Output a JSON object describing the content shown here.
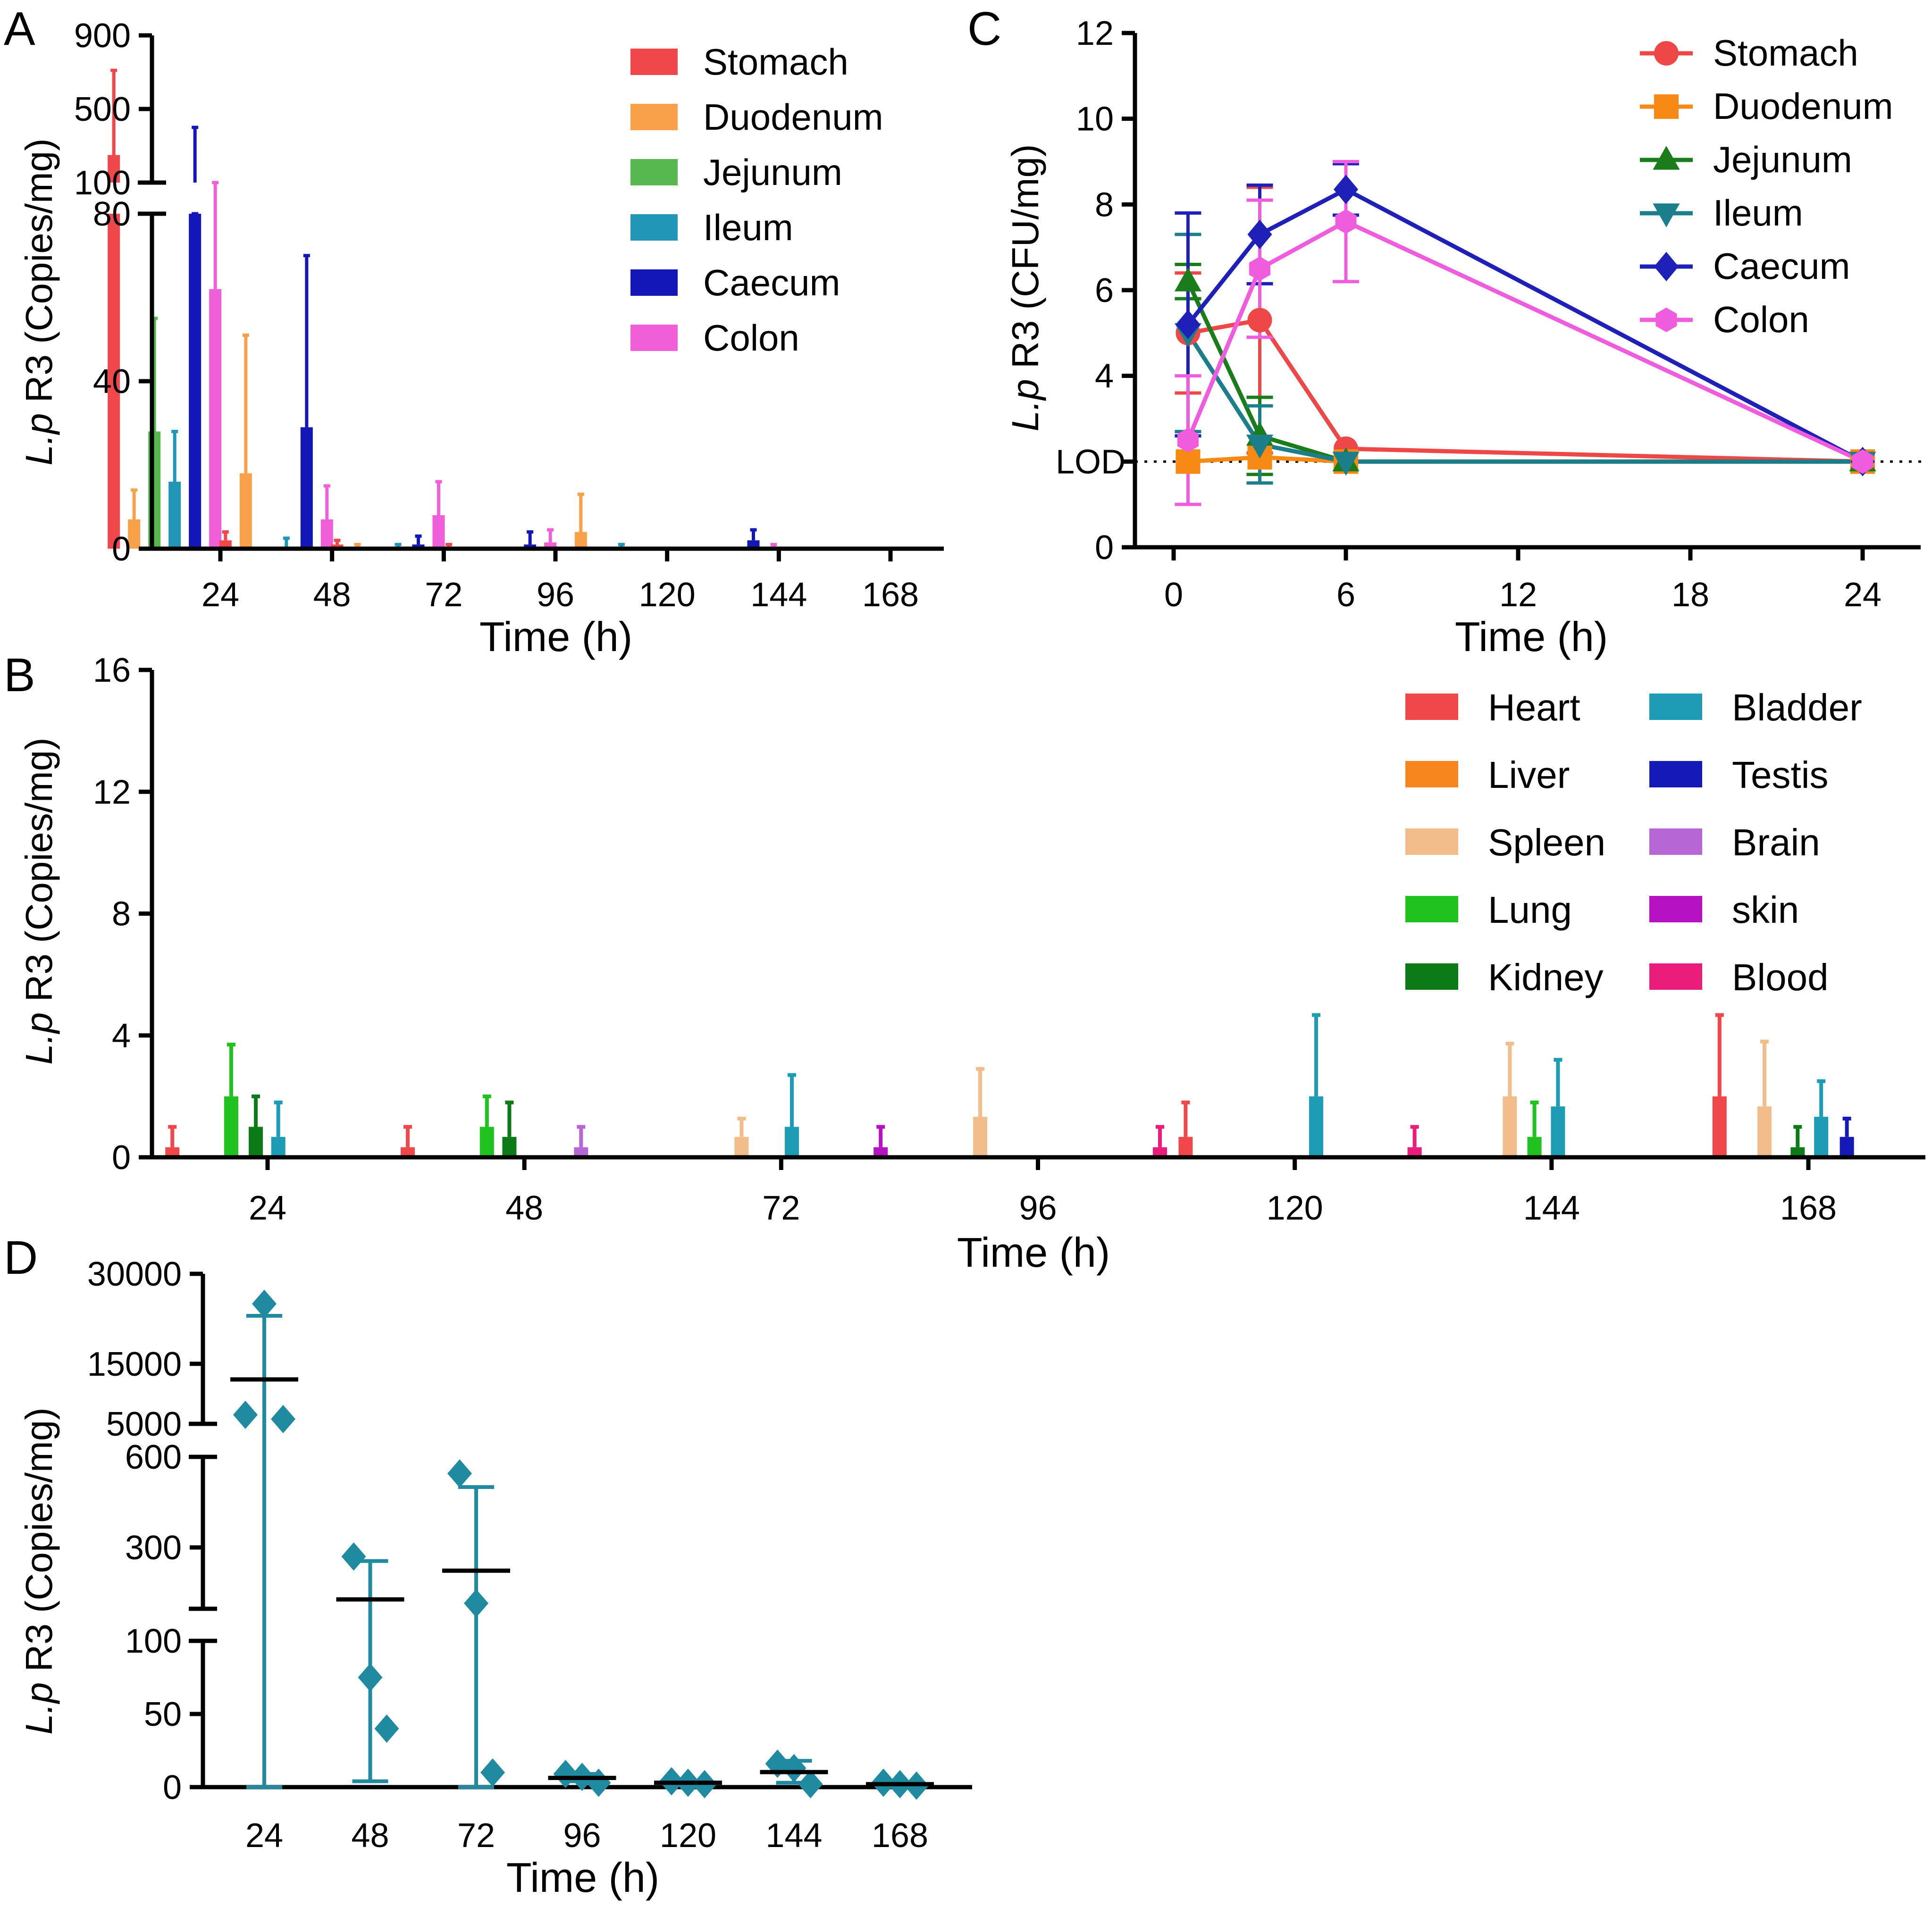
{
  "figure": {
    "colors": {
      "Stomach": "#f0484a",
      "Duodenum": "#f9a14a",
      "Jejunum": "#57b84f",
      "Ileum": "#2196b7",
      "Caecum": "#1317b8",
      "Colon": "#f05ed8",
      "Heart": "#f0484a",
      "Liver": "#f7861f",
      "Spleen": "#f2bd8a",
      "Lung": "#1fc21f",
      "Kidney": "#0c7a16",
      "Bladder": "#1e9cb5",
      "Testis": "#1419b7",
      "Brain": "#b767d5",
      "skin": "#b612c3",
      "Blood": "#ea1d7a",
      "cRed": "#ee4747",
      "cOrange": "#f78a14",
      "cGreen": "#1b7c1b",
      "cTeal": "#1d7e8b",
      "cBlue": "#1e20b8",
      "cPink": "#ef5cdd",
      "dMarker": "#1f8aa0"
    }
  },
  "chart_data": [
    {
      "panel": "A",
      "type": "bar",
      "ylabel_italic": "L.p",
      "ylabel_rest": " R3 (Copies/mg)",
      "xlabel": "Time (h)",
      "categories": [
        "24",
        "48",
        "72",
        "96",
        "120",
        "144",
        "168"
      ],
      "yticks_lower": [
        "0",
        "40",
        "80"
      ],
      "yticks_upper": [
        "100",
        "500",
        "900"
      ],
      "ylim_lower": [
        0,
        80
      ],
      "ylim_upper": [
        100,
        900
      ],
      "series": [
        {
          "name": "Stomach",
          "values": [
            250,
            2,
            1,
            0.5,
            0,
            0,
            0
          ],
          "errors": [
            460,
            2,
            1,
            0.5,
            0,
            0,
            0
          ]
        },
        {
          "name": "Duodenum",
          "values": [
            7,
            18,
            0.5,
            0,
            4,
            0,
            0
          ],
          "errors": [
            7,
            33,
            0.5,
            0,
            9,
            0,
            0
          ]
        },
        {
          "name": "Jejunum",
          "values": [
            28,
            0,
            0,
            0,
            0,
            0,
            0
          ],
          "errors": [
            27,
            0,
            0,
            0,
            0,
            0,
            0
          ]
        },
        {
          "name": "Ileum",
          "values": [
            16,
            0.5,
            0.5,
            0,
            0.5,
            0,
            0
          ],
          "errors": [
            12,
            2,
            0.5,
            0,
            0.5,
            0,
            0
          ]
        },
        {
          "name": "Caecum",
          "values": [
            80,
            29,
            1,
            1,
            0,
            2,
            0
          ],
          "errors": [
            320,
            41,
            2,
            3,
            0,
            2.5,
            0
          ]
        },
        {
          "name": "Colon",
          "values": [
            62,
            7,
            8,
            1.5,
            0,
            0.5,
            0
          ],
          "errors": [
            38,
            8,
            8,
            3,
            0,
            0.5,
            0
          ]
        }
      ],
      "legend": [
        "Stomach",
        "Duodenum",
        "Jejunum",
        "Ileum",
        "Caecum",
        "Colon"
      ]
    },
    {
      "panel": "B",
      "type": "bar",
      "ylabel_italic": "L.p",
      "ylabel_rest": " R3 (Copies/mg)",
      "xlabel": "Time (h)",
      "categories": [
        "24",
        "48",
        "72",
        "96",
        "120",
        "144",
        "168"
      ],
      "yticks": [
        "0",
        "4",
        "8",
        "12",
        "16"
      ],
      "ylim": [
        0,
        16
      ],
      "bars": [
        {
          "series": "Heart",
          "x": 15.1,
          "value": 0.33,
          "error": 0.67
        },
        {
          "series": "Lung",
          "x": 20.6,
          "value": 2.0,
          "error": 1.7
        },
        {
          "series": "Kidney",
          "x": 22.9,
          "value": 1.0,
          "error": 1.0
        },
        {
          "series": "Bladder",
          "x": 25.0,
          "value": 0.67,
          "error": 1.13
        },
        {
          "series": "Heart",
          "x": 37.1,
          "value": 0.33,
          "error": 0.67
        },
        {
          "series": "Lung",
          "x": 44.5,
          "value": 1.0,
          "error": 1.0
        },
        {
          "series": "Kidney",
          "x": 46.6,
          "value": 0.67,
          "error": 1.13
        },
        {
          "series": "Brain",
          "x": 53.3,
          "value": 0.33,
          "error": 0.67
        },
        {
          "series": "Spleen",
          "x": 68.3,
          "value": 0.67,
          "error": 0.6
        },
        {
          "series": "Bladder",
          "x": 73.0,
          "value": 1.0,
          "error": 1.7
        },
        {
          "series": "skin",
          "x": 81.3,
          "value": 0.33,
          "error": 0.67
        },
        {
          "series": "Spleen",
          "x": 90.6,
          "value": 1.33,
          "error": 1.57
        },
        {
          "series": "Blood",
          "x": 107.4,
          "value": 0.33,
          "error": 0.67
        },
        {
          "series": "Heart",
          "x": 109.8,
          "value": 0.67,
          "error": 1.13
        },
        {
          "series": "Bladder",
          "x": 122.0,
          "value": 2.0,
          "error": 2.67
        },
        {
          "series": "Blood",
          "x": 131.2,
          "value": 0.33,
          "error": 0.67
        },
        {
          "series": "Spleen",
          "x": 140.1,
          "value": 2.0,
          "error": 1.73
        },
        {
          "series": "Lung",
          "x": 142.4,
          "value": 0.67,
          "error": 1.13
        },
        {
          "series": "Bladder",
          "x": 144.6,
          "value": 1.67,
          "error": 1.53
        },
        {
          "series": "Heart",
          "x": 159.7,
          "value": 2.0,
          "error": 2.67
        },
        {
          "series": "Spleen",
          "x": 163.9,
          "value": 1.67,
          "error": 2.13
        },
        {
          "series": "Kidney",
          "x": 167.0,
          "value": 0.33,
          "error": 0.67
        },
        {
          "series": "Bladder",
          "x": 169.2,
          "value": 1.33,
          "error": 1.17
        },
        {
          "series": "Testis",
          "x": 171.6,
          "value": 0.67,
          "error": 0.6
        }
      ],
      "legend_col1": [
        "Heart",
        "Liver",
        "Spleen",
        "Lung",
        "Kidney"
      ],
      "legend_col2": [
        "Bladder",
        "Testis",
        "Brain",
        "skin",
        "Blood"
      ]
    },
    {
      "panel": "C",
      "type": "line",
      "ylabel_italic": "L.p",
      "ylabel_rest": " R3 (CFU/mg)",
      "xlabel": "Time (h)",
      "xticks": [
        "0",
        "6",
        "12",
        "18",
        "24"
      ],
      "ylim": [
        0,
        12
      ],
      "yticks": [
        "0",
        "2",
        "4",
        "6",
        "8",
        "10",
        "12"
      ],
      "lod_label": "LOD",
      "lod_value": 2,
      "series": [
        {
          "name": "Stomach",
          "marker": "circle",
          "x": [
            0.5,
            3,
            6,
            24
          ],
          "y": [
            5.0,
            5.3,
            2.3,
            2.0
          ],
          "err": [
            1.4,
            3.1,
            0,
            0
          ]
        },
        {
          "name": "Duodenum",
          "marker": "square",
          "x": [
            0.5,
            3,
            6,
            24
          ],
          "y": [
            2.0,
            2.1,
            2.0,
            2.0
          ],
          "err": [
            0,
            0,
            0,
            0
          ]
        },
        {
          "name": "Jejunum",
          "marker": "triangle-up",
          "x": [
            0.5,
            3,
            6,
            24
          ],
          "y": [
            6.2,
            2.6,
            2.0,
            2.0
          ],
          "err": [
            0.4,
            0.9,
            0,
            0
          ]
        },
        {
          "name": "Ileum",
          "marker": "triangle-down",
          "x": [
            0.5,
            3,
            6,
            24
          ],
          "y": [
            5.0,
            2.4,
            2.0,
            2.0
          ],
          "err": [
            2.3,
            0.9,
            0,
            0
          ]
        },
        {
          "name": "Caecum",
          "marker": "diamond",
          "x": [
            0.5,
            3,
            6,
            24
          ],
          "y": [
            5.2,
            7.3,
            8.35,
            2.0
          ],
          "err": [
            2.6,
            1.15,
            0.6,
            0
          ]
        },
        {
          "name": "Colon",
          "marker": "hexagon",
          "x": [
            0.5,
            3,
            6,
            24
          ],
          "y": [
            2.5,
            6.5,
            7.6,
            2.0
          ],
          "err": [
            1.5,
            1.6,
            1.4,
            0
          ]
        }
      ],
      "legend": [
        "Stomach",
        "Duodenum",
        "Jejunum",
        "Ileum",
        "Caecum",
        "Colon"
      ]
    },
    {
      "panel": "D",
      "type": "scatter",
      "ylabel_italic": "L.p",
      "ylabel_rest": " R3 (Copies/mg)",
      "xlabel": "Time (h)",
      "categories": [
        "24",
        "48",
        "72",
        "96",
        "120",
        "144",
        "168"
      ],
      "yticks_low": [
        "0",
        "50",
        "100"
      ],
      "yticks_mid": [
        "300",
        "600"
      ],
      "yticks_high": [
        "5000",
        "15000",
        "30000"
      ],
      "groups": [
        {
          "points": [
            25000,
            6500,
            5800
          ],
          "mean": 12400,
          "upper": 23000,
          "lower": 0
        },
        {
          "points": [
            270,
            75,
            40
          ],
          "mean": 128,
          "upper": 255,
          "lower": 4
        },
        {
          "points": [
            545,
            115,
            10
          ],
          "mean": 223,
          "upper": 500,
          "lower": 0
        },
        {
          "points": [
            9,
            7,
            3
          ],
          "mean": 6.3,
          "upper": 9,
          "lower": 4
        },
        {
          "points": [
            4,
            3,
            2
          ],
          "mean": 3.0,
          "upper": 4,
          "lower": 2
        },
        {
          "points": [
            16,
            13,
            2
          ],
          "mean": 10.3,
          "upper": 18,
          "lower": 3
        },
        {
          "points": [
            3,
            2,
            1
          ],
          "mean": 2.0,
          "upper": 3,
          "lower": 1
        }
      ]
    }
  ]
}
